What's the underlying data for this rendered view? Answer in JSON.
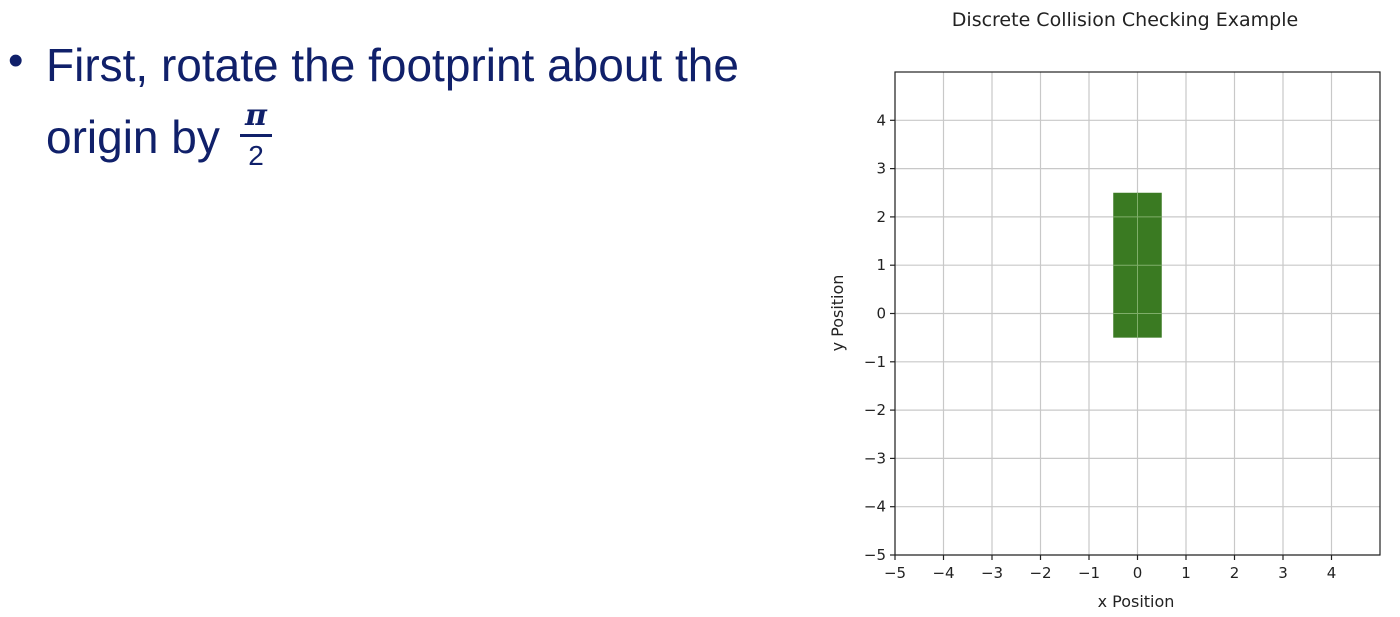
{
  "slide": {
    "bullet_symbol": "•",
    "line1": "First, rotate the footprint about the",
    "line2": "origin by",
    "fraction_numerator": "π",
    "fraction_denominator": "2"
  },
  "chart_data": {
    "type": "rectangle",
    "title": "Discrete Collision Checking Example",
    "xlabel": "x Position",
    "ylabel": "y Position",
    "xlim": [
      -5,
      5
    ],
    "ylim": [
      -5,
      5
    ],
    "x_ticks": [
      -5,
      -4,
      -3,
      -2,
      -1,
      0,
      1,
      2,
      3,
      4
    ],
    "y_ticks": [
      -5,
      -4,
      -3,
      -2,
      -1,
      0,
      1,
      2,
      3,
      4
    ],
    "grid": true,
    "footprint": {
      "x_min": -0.5,
      "x_max": 0.5,
      "y_min": -0.5,
      "y_max": 2.5,
      "color": "#3a7a22"
    }
  }
}
